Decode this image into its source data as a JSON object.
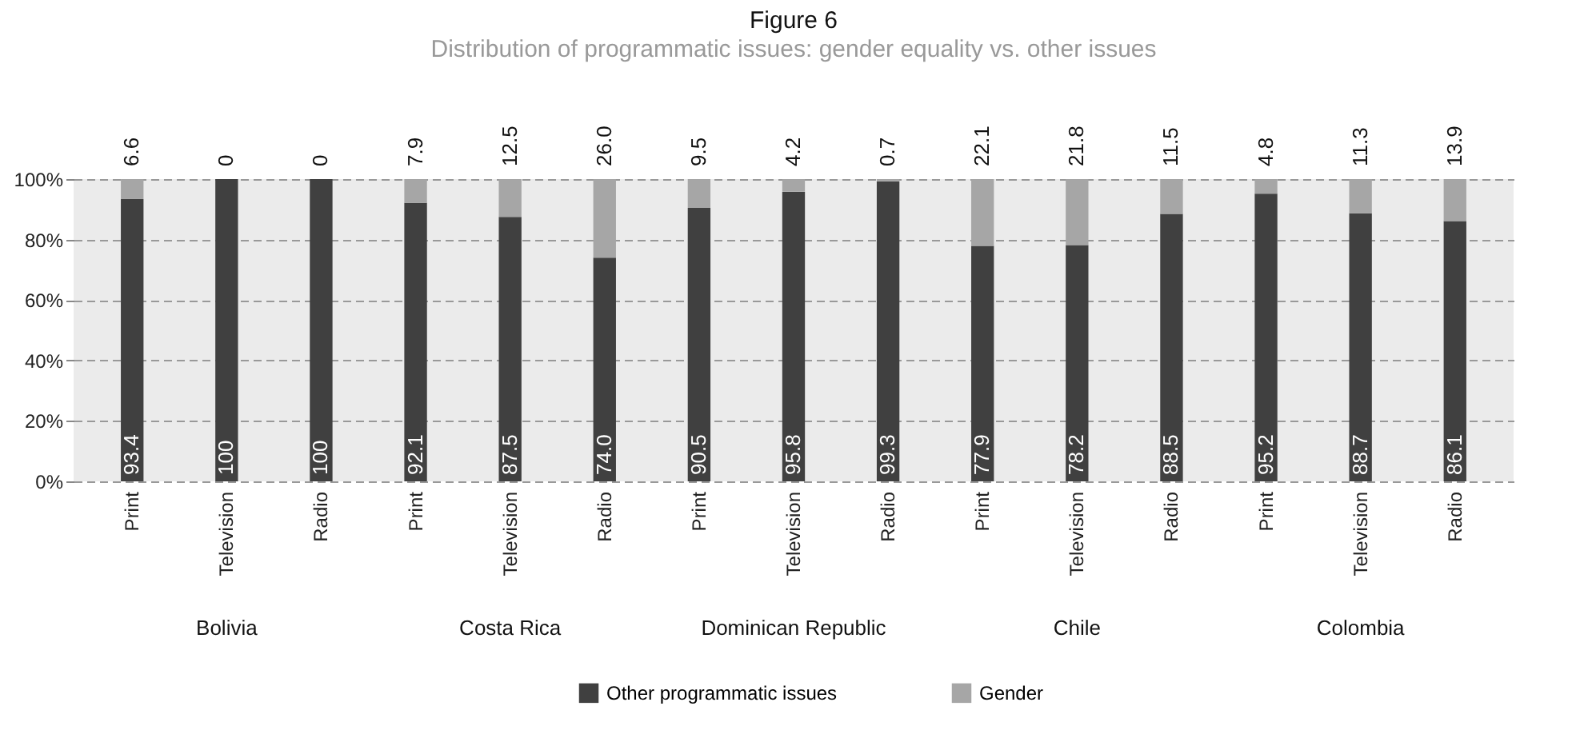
{
  "chart_data": {
    "type": "bar",
    "title": "Figure 6",
    "subtitle": "Distribution of programmatic issues: gender equality vs. other issues",
    "categories": [
      "Print",
      "Television",
      "Radio",
      "Print",
      "Television",
      "Radio",
      "Print",
      "Television",
      "Radio",
      "Print",
      "Television",
      "Radio",
      "Print",
      "Television",
      "Radio"
    ],
    "annotations": [
      "Bolivia",
      "Costa Rica",
      "Dominican Republic",
      "Chile",
      "Colombia"
    ],
    "stacked": true,
    "ylim": [
      0,
      100
    ],
    "yticks": [
      {
        "value": 0,
        "label": "0%"
      },
      {
        "value": 20,
        "label": "20%"
      },
      {
        "value": 40,
        "label": "40%"
      },
      {
        "value": 60,
        "label": "60%"
      },
      {
        "value": 80,
        "label": "80%"
      },
      {
        "value": 100,
        "label": "100%"
      }
    ],
    "grid": "y",
    "legend": "bottom",
    "series": [
      {
        "name": "Other programmatic issues",
        "color": "#404040",
        "values": [
          93.4,
          100,
          100,
          92.1,
          87.5,
          74.0,
          90.5,
          95.8,
          99.3,
          77.9,
          78.2,
          88.5,
          95.2,
          88.7,
          86.1
        ],
        "value_labels": [
          "93.4",
          "100",
          "100",
          "92.1",
          "87.5",
          "74.0",
          "90.5",
          "95.8",
          "99.3",
          "77.9",
          "78.2",
          "88.5",
          "95.2",
          "88.7",
          "86.1"
        ]
      },
      {
        "name": "Gender",
        "color": "#a6a6a6",
        "values": [
          6.6,
          0,
          0,
          7.9,
          12.5,
          26.0,
          9.5,
          4.2,
          0.7,
          22.1,
          21.8,
          11.5,
          4.8,
          11.3,
          13.9
        ],
        "value_labels": [
          "6.6",
          "0",
          "0",
          "7.9",
          "12.5",
          "26.0",
          "9.5",
          "4.2",
          "0.7",
          "22.1",
          "21.8",
          "11.5",
          "4.8",
          "11.3",
          "13.9"
        ]
      }
    ]
  }
}
